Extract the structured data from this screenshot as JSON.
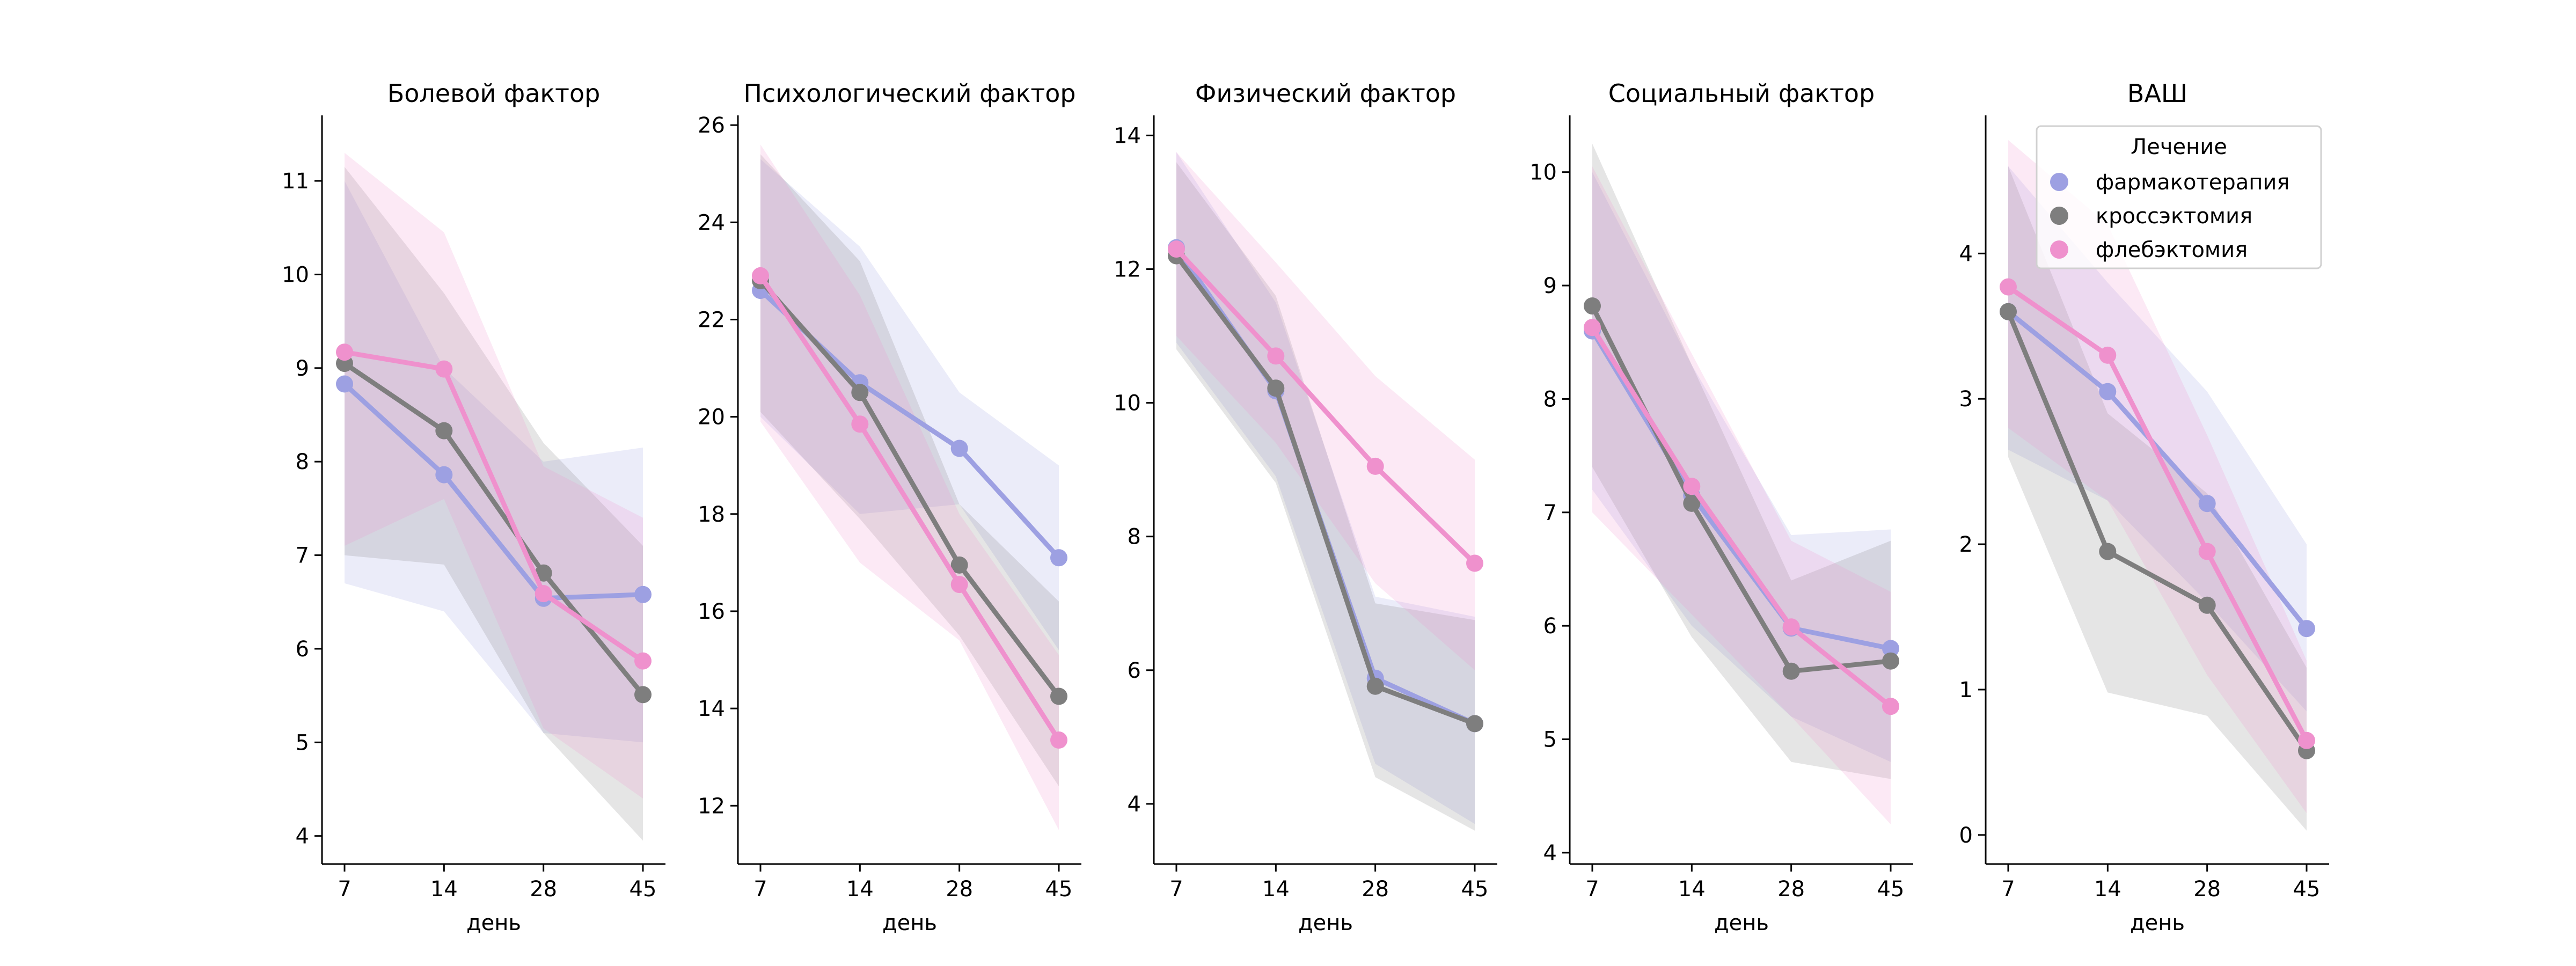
{
  "chart_data": {
    "type": "line",
    "x": [
      "7",
      "14",
      "28",
      "45"
    ],
    "series_colors": {
      "фармакотерапия": "#9da0e2",
      "кроссэктомия": "#7e7e7e",
      "флебэктомия": "#ef91cd"
    },
    "legend": {
      "title": "Лечение",
      "placement": "top-right",
      "labels": [
        "фармакотерапия",
        "кроссэктомия",
        "флебэктомия"
      ]
    },
    "panels": [
      {
        "title": "Болевой фактор",
        "xlabel": "день",
        "ylim": [
          3.7,
          11.7
        ],
        "yticks": [
          4,
          5,
          6,
          7,
          8,
          9,
          10,
          11
        ],
        "series": [
          {
            "name": "фармакотерапия",
            "values": [
              8.83,
              7.86,
              6.54,
              6.58
            ],
            "ci_low": [
              6.7,
              6.4,
              5.1,
              5.0
            ],
            "ci_high": [
              11.0,
              9.0,
              8.0,
              8.15
            ]
          },
          {
            "name": "кроссэктомия",
            "values": [
              9.05,
              8.33,
              6.81,
              5.51
            ],
            "ci_low": [
              7.0,
              6.9,
              5.1,
              3.95
            ],
            "ci_high": [
              11.15,
              9.8,
              8.2,
              7.1
            ]
          },
          {
            "name": "флебэктомия",
            "values": [
              9.17,
              8.99,
              6.59,
              5.87
            ],
            "ci_low": [
              7.1,
              7.6,
              5.15,
              4.4
            ],
            "ci_high": [
              11.3,
              10.45,
              7.95,
              7.4
            ]
          }
        ]
      },
      {
        "title": "Психологический фактор",
        "xlabel": "день",
        "ylim": [
          10.8,
          26.2
        ],
        "yticks": [
          12,
          14,
          16,
          18,
          20,
          22,
          24,
          26
        ],
        "series": [
          {
            "name": "фармакотерапия",
            "values": [
              22.6,
              20.7,
              19.35,
              17.1
            ],
            "ci_low": [
              20.0,
              18.0,
              18.2,
              15.2
            ],
            "ci_high": [
              25.3,
              23.5,
              20.5,
              19.0
            ]
          },
          {
            "name": "кроссэктомия",
            "values": [
              22.8,
              20.5,
              16.95,
              14.25
            ],
            "ci_low": [
              20.1,
              17.9,
              15.5,
              12.4
            ],
            "ci_high": [
              25.4,
              23.2,
              18.2,
              16.2
            ]
          },
          {
            "name": "флебэктомия",
            "values": [
              22.9,
              19.85,
              16.55,
              13.35
            ],
            "ci_low": [
              19.9,
              17.0,
              15.4,
              11.5
            ],
            "ci_high": [
              25.6,
              22.5,
              18.0,
              15.1
            ]
          }
        ]
      },
      {
        "title": "Физический фактор",
        "xlabel": "день",
        "ylim": [
          3.1,
          14.3
        ],
        "yticks": [
          4,
          6,
          8,
          10,
          12,
          14
        ],
        "series": [
          {
            "name": "фармакотерапия",
            "values": [
              12.32,
              10.18,
              5.88,
              5.2
            ],
            "ci_low": [
              10.9,
              8.9,
              4.6,
              3.7
            ],
            "ci_high": [
              13.75,
              11.5,
              7.1,
              6.8
            ]
          },
          {
            "name": "кроссэктомия",
            "values": [
              12.2,
              10.22,
              5.76,
              5.2
            ],
            "ci_low": [
              10.8,
              8.8,
              4.4,
              3.6
            ],
            "ci_high": [
              13.6,
              11.6,
              7.0,
              6.75
            ]
          },
          {
            "name": "флебэктомия",
            "values": [
              12.3,
              10.7,
              9.05,
              7.6
            ],
            "ci_low": [
              11.0,
              9.4,
              7.3,
              6.0
            ],
            "ci_high": [
              13.75,
              12.1,
              10.4,
              9.15
            ]
          }
        ]
      },
      {
        "title": "Социальный фактор",
        "xlabel": "день",
        "ylim": [
          3.9,
          10.5
        ],
        "yticks": [
          4,
          5,
          6,
          7,
          8,
          9,
          10
        ],
        "series": [
          {
            "name": "фармакотерапия",
            "values": [
              8.6,
              7.15,
              5.98,
              5.8
            ],
            "ci_low": [
              7.2,
              6.0,
              5.2,
              4.8
            ],
            "ci_high": [
              10.0,
              8.3,
              6.8,
              6.85
            ]
          },
          {
            "name": "кроссэктомия",
            "values": [
              8.82,
              7.08,
              5.6,
              5.69
            ],
            "ci_low": [
              7.4,
              5.9,
              4.8,
              4.65
            ],
            "ci_high": [
              10.25,
              8.3,
              6.4,
              6.75
            ]
          },
          {
            "name": "флебэктомия",
            "values": [
              8.63,
              7.23,
              5.99,
              5.29
            ],
            "ci_low": [
              7.0,
              6.1,
              5.2,
              4.25
            ],
            "ci_high": [
              10.05,
              8.4,
              6.75,
              6.3
            ]
          }
        ]
      },
      {
        "title": "ВАШ",
        "xlabel": "день",
        "ylim": [
          -0.2,
          4.95
        ],
        "yticks": [
          0,
          1,
          2,
          3,
          4
        ],
        "series": [
          {
            "name": "фармакотерапия",
            "values": [
              3.6,
              3.05,
              2.28,
              1.42
            ],
            "ci_low": [
              2.65,
              2.3,
              1.6,
              0.85
            ],
            "ci_high": [
              4.6,
              3.8,
              3.05,
              2.0
            ]
          },
          {
            "name": "кроссэктомия",
            "values": [
              3.6,
              1.95,
              1.58,
              0.58
            ],
            "ci_low": [
              2.6,
              0.98,
              0.82,
              0.03
            ],
            "ci_high": [
              4.6,
              2.9,
              2.35,
              1.15
            ]
          },
          {
            "name": "флебэктомия",
            "values": [
              3.77,
              3.3,
              1.95,
              0.65
            ],
            "ci_low": [
              2.8,
              2.3,
              1.1,
              0.15
            ],
            "ci_high": [
              4.78,
              4.2,
              2.75,
              1.2
            ]
          }
        ]
      }
    ]
  }
}
